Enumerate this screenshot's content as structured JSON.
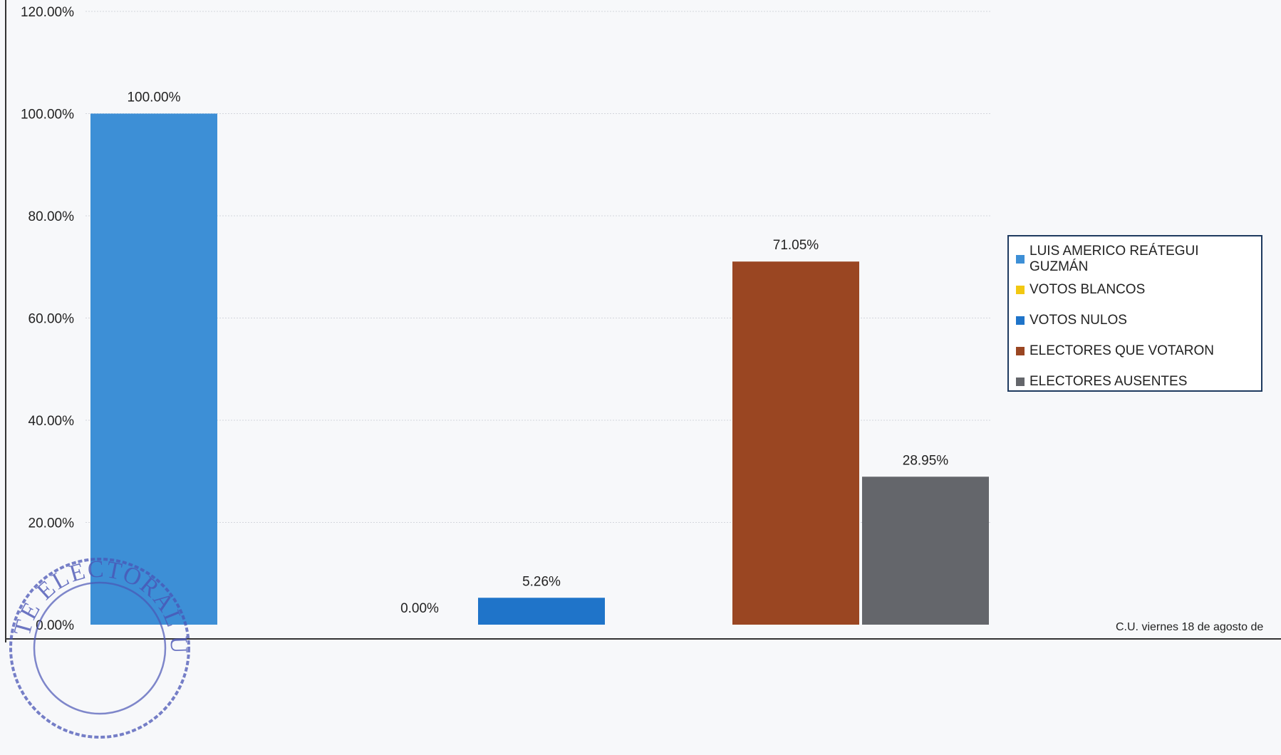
{
  "chart_data": {
    "type": "bar",
    "categories": [
      "LUIS AMERICO REÁTEGUI GUZMÁN",
      "VOTOS BLANCOS",
      "VOTOS NULOS",
      "ELECTORES QUE VOTARON",
      "ELECTORES AUSENTES"
    ],
    "values": [
      100.0,
      0.0,
      5.26,
      71.05,
      28.95
    ],
    "data_labels": [
      "100.00%",
      "0.00%",
      "5.26%",
      "71.05%",
      "28.95%"
    ],
    "colors": [
      "#3d8fd6",
      "#f2c811",
      "#1f74c9",
      "#9a4622",
      "#64666b"
    ],
    "ylim": [
      0,
      120
    ],
    "yticks": [
      "0.00%",
      "20.00%",
      "40.00%",
      "60.00%",
      "80.00%",
      "100.00%",
      "120.00%"
    ],
    "grid": true,
    "legend_position": "right"
  },
  "legend": {
    "items": [
      {
        "label": "LUIS AMERICO REÁTEGUI GUZMÁN",
        "color": "#3d8fd6"
      },
      {
        "label": "VOTOS BLANCOS",
        "color": "#f2c811"
      },
      {
        "label": "VOTOS NULOS",
        "color": "#1f74c9"
      },
      {
        "label": "ELECTORES QUE VOTARON",
        "color": "#9a4622"
      },
      {
        "label": "ELECTORES AUSENTES",
        "color": "#64666b"
      }
    ]
  },
  "footer": {
    "date_text": "C.U. viernes 18 de agosto de"
  },
  "seal": {
    "text": "TE ELECTORAL UNIVERS"
  }
}
